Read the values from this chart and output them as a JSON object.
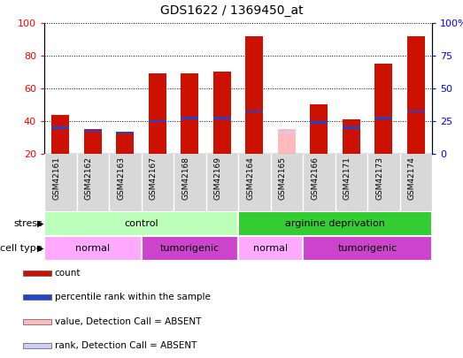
{
  "title": "GDS1622 / 1369450_at",
  "samples": [
    "GSM42161",
    "GSM42162",
    "GSM42163",
    "GSM42167",
    "GSM42168",
    "GSM42169",
    "GSM42164",
    "GSM42165",
    "GSM42166",
    "GSM42171",
    "GSM42173",
    "GSM42174"
  ],
  "count_values": [
    44,
    35,
    33,
    69,
    69,
    70,
    92,
    0,
    50,
    41,
    75,
    92
  ],
  "count_absent": [
    0,
    0,
    0,
    0,
    0,
    0,
    0,
    35,
    0,
    0,
    0,
    0
  ],
  "rank_values": [
    36,
    34,
    33,
    40,
    42,
    42,
    46,
    0,
    39,
    36,
    42,
    46
  ],
  "rank_absent_values": [
    0,
    0,
    0,
    0,
    0,
    0,
    0,
    33,
    0,
    0,
    0,
    0
  ],
  "ylim_left": [
    20,
    100
  ],
  "ylim_right": [
    0,
    100
  ],
  "yticks_left": [
    20,
    40,
    60,
    80,
    100
  ],
  "yticks_right": [
    0,
    25,
    50,
    75,
    100
  ],
  "ytick_right_labels": [
    "0",
    "25",
    "50",
    "75",
    "100%"
  ],
  "stress_groups": [
    {
      "label": "control",
      "start": 0,
      "end": 6,
      "color": "#bbffbb"
    },
    {
      "label": "arginine deprivation",
      "start": 6,
      "end": 12,
      "color": "#33cc33"
    }
  ],
  "celltype_groups": [
    {
      "label": "normal",
      "start": 0,
      "end": 3,
      "color": "#ffaaff"
    },
    {
      "label": "tumorigenic",
      "start": 3,
      "end": 6,
      "color": "#cc44cc"
    },
    {
      "label": "normal",
      "start": 6,
      "end": 8,
      "color": "#ffaaff"
    },
    {
      "label": "tumorigenic",
      "start": 8,
      "end": 12,
      "color": "#cc44cc"
    }
  ],
  "count_color": "#cc1100",
  "rank_color": "#2244cc",
  "count_absent_color": "#ffbbbb",
  "rank_absent_color": "#ccccff",
  "bar_width": 0.55,
  "legend_items": [
    {
      "label": "count",
      "color": "#cc1100"
    },
    {
      "label": "percentile rank within the sample",
      "color": "#2244cc"
    },
    {
      "label": "value, Detection Call = ABSENT",
      "color": "#ffbbbb"
    },
    {
      "label": "rank, Detection Call = ABSENT",
      "color": "#ccccff"
    }
  ],
  "gray_bg": "#d8d8d8",
  "chart_bg": "#ffffff"
}
